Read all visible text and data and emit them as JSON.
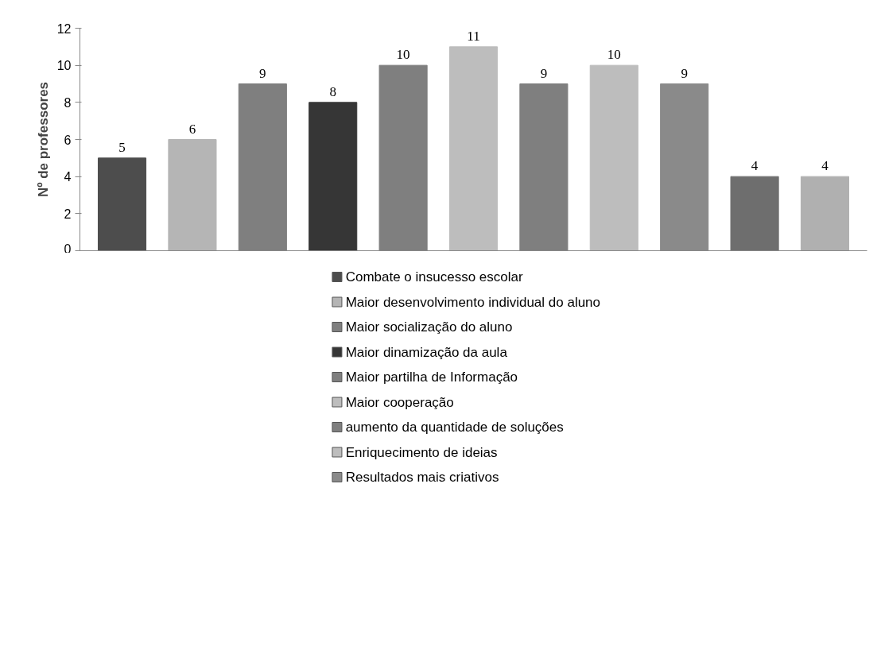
{
  "chart_data": {
    "type": "bar",
    "ylabel": "Nº de professores",
    "categories": [
      null
    ],
    "series": [
      {
        "name": "Combate o insucesso escolar",
        "color": "#4d4d4d",
        "values": [
          5
        ]
      },
      {
        "name": "Maior desenvolvimento individual do aluno",
        "color": "#b5b5b5",
        "values": [
          6
        ]
      },
      {
        "name": "Maior socialização do aluno",
        "color": "#7f7f7f",
        "values": [
          9
        ]
      },
      {
        "name": "Maior dinamização da aula",
        "color": "#363636",
        "values": [
          8
        ]
      },
      {
        "name": "Maior partilha de Informação",
        "color": "#7f7f7f",
        "values": [
          10
        ]
      },
      {
        "name": "Maior cooperação",
        "color": "#bdbdbd",
        "values": [
          11
        ]
      },
      {
        "name": "aumento da quantidade de soluções",
        "color": "#7f7f7f",
        "values": [
          9
        ]
      },
      {
        "name": "Enriquecimento de ideias",
        "color": "#bdbdbd",
        "values": [
          10
        ]
      },
      {
        "name": "Resultados mais criativos",
        "color": "#8a8a8a",
        "values": [
          9
        ]
      },
      {
        "color": "#6e6e6e",
        "values": [
          4
        ]
      },
      {
        "color": "#b0b0b0",
        "values": [
          4
        ]
      }
    ],
    "ylim": [
      0,
      12
    ],
    "yticks": [
      0,
      2,
      4,
      6,
      8,
      10,
      12
    ],
    "grid": false,
    "legend": "bottom",
    "data_labels": true,
    "tick_labels": "y"
  }
}
